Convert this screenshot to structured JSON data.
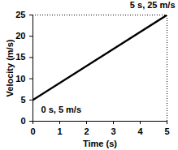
{
  "chart_data": {
    "type": "line",
    "x": [
      0,
      5
    ],
    "values": [
      5,
      25
    ],
    "color": "#000000",
    "xlabel": "Time (s)",
    "ylabel": "Velocity (m/s)",
    "xlim": [
      0,
      5
    ],
    "ylim": [
      0,
      25
    ],
    "xticks": [
      0,
      1,
      2,
      3,
      4,
      5
    ],
    "yticks": [
      0,
      5,
      10,
      15,
      20,
      25
    ],
    "grid": false,
    "annotations": [
      {
        "text": "0 s, 5 m/s",
        "x": 0,
        "y": 5
      },
      {
        "text": "5 s, 25 m/s",
        "x": 5,
        "y": 25
      }
    ]
  }
}
